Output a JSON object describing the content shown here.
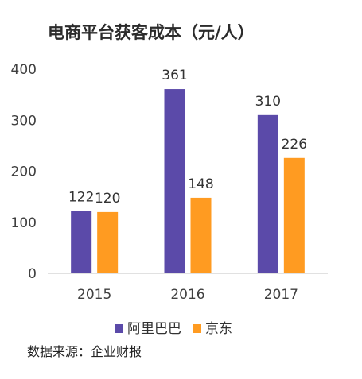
{
  "chart_data": {
    "type": "bar",
    "title": "电商平台获客成本（元/人）",
    "categories": [
      "2015",
      "2016",
      "2017"
    ],
    "series": [
      {
        "name": "阿里巴巴",
        "values": [
          122,
          361,
          310
        ],
        "color": "#5b4aa9"
      },
      {
        "name": "京东",
        "values": [
          120,
          148,
          226
        ],
        "color": "#ff9b21"
      }
    ],
    "ylim": [
      0,
      400
    ],
    "yticks": [
      "0",
      "100",
      "200",
      "300",
      "400"
    ],
    "grid": false,
    "legend_position": "bottom"
  },
  "footer": {
    "source": "数据来源：企业财报"
  }
}
